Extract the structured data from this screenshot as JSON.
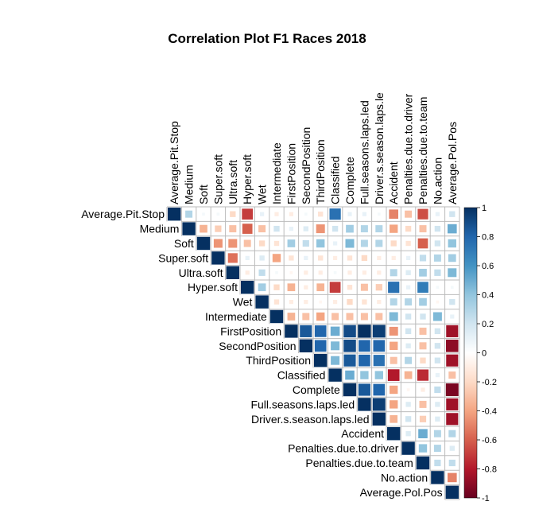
{
  "chart_data": {
    "type": "heatmap",
    "title": "Correlation Plot F1 Races 2018",
    "layout": "upper-triangle, square cells sized by magnitude",
    "variables": [
      "Average.Pit.Stop",
      "Medium",
      "Soft",
      "Super.soft",
      "Ultra.soft",
      "Hyper.soft",
      "Wet",
      "Intermediate",
      "FirstPosition",
      "SecondPosition",
      "ThirdPosition",
      "Classified",
      "Complete",
      "Full.seasons.laps.led",
      "Driver.s.season.laps.led",
      "Accident",
      "Penalties.due.to.driver",
      "Penalties.due.to.team",
      "No.action",
      "Average.Pol.Pos"
    ],
    "column_labels": [
      "Average.Pit.Stop",
      "Medium",
      "Soft",
      "Super.soft",
      "Ultra.soft",
      "Hyper.soft",
      "Wet",
      "Intermediate",
      "FirstPosition",
      "SecondPosition",
      "ThirdPosition",
      "Classified",
      "Complete",
      "Full.seasons.laps.led",
      "Driver.s.season.laps.le",
      "Accident",
      "Penalties.due.to.driver",
      "Penalties.due.to.team",
      "No.action",
      "Average.Pol.Pos"
    ],
    "matrix": [
      [
        1,
        0.3,
        0.05,
        0.05,
        -0.2,
        -0.7,
        0.1,
        -0.1,
        -0.1,
        0.05,
        -0.15,
        0.75,
        0.1,
        0.1,
        0.05,
        -0.5,
        -0.3,
        -0.65,
        0.1,
        0.2
      ],
      [
        0.3,
        1,
        -0.35,
        -0.25,
        -0.3,
        -0.6,
        -0.3,
        0.2,
        0.1,
        0.15,
        -0.45,
        0.2,
        0.35,
        0.3,
        0.3,
        -0.4,
        -0.2,
        -0.3,
        0.2,
        0.5
      ],
      [
        0.05,
        -0.35,
        1,
        -0.45,
        -0.45,
        -0.3,
        -0.2,
        -0.15,
        0.35,
        0.25,
        0.4,
        0.1,
        0.45,
        0.3,
        0.3,
        -0.2,
        -0.15,
        -0.6,
        0.2,
        0.4
      ],
      [
        0.05,
        -0.25,
        -0.45,
        1,
        -0.55,
        0.1,
        0.15,
        -0.4,
        -0.15,
        0.1,
        -0.15,
        -0.1,
        -0.15,
        -0.2,
        -0.1,
        -0.1,
        0.1,
        0.25,
        0.3,
        0.35
      ],
      [
        -0.2,
        -0.3,
        -0.45,
        -0.55,
        1,
        -0.1,
        0.25,
        0.05,
        -0.05,
        -0.1,
        -0.1,
        0.05,
        -0.1,
        -0.1,
        -0.1,
        0.3,
        0.15,
        0.35,
        0.25,
        0.45
      ],
      [
        -0.7,
        -0.6,
        -0.3,
        0.1,
        -0.1,
        1,
        0.35,
        -0.2,
        -0.35,
        -0.1,
        -0.35,
        -0.7,
        -0.15,
        -0.3,
        -0.25,
        0.75,
        0.1,
        0.7,
        0.05,
        0.05
      ],
      [
        0.1,
        -0.3,
        -0.2,
        0.15,
        0.25,
        0.35,
        1,
        -0.15,
        -0.1,
        -0.1,
        -0.05,
        -0.1,
        -0.2,
        -0.15,
        -0.1,
        0.3,
        0.3,
        0.35,
        -0.05,
        0.2
      ],
      [
        -0.1,
        0.2,
        -0.15,
        -0.4,
        0.05,
        -0.2,
        -0.15,
        1,
        -0.35,
        -0.3,
        -0.4,
        -0.3,
        -0.3,
        -0.3,
        -0.3,
        0.45,
        0.2,
        0.2,
        0.45,
        0.1
      ],
      [
        -0.1,
        0.1,
        0.35,
        -0.15,
        -0.05,
        -0.35,
        -0.1,
        -0.35,
        1,
        0.85,
        0.8,
        0.5,
        0.9,
        1,
        0.95,
        -0.45,
        0.2,
        -0.3,
        0.2,
        -0.85
      ],
      [
        0.05,
        0.15,
        0.25,
        0.1,
        -0.1,
        -0.1,
        -0.1,
        -0.3,
        0.85,
        1,
        0.8,
        0.45,
        0.9,
        0.8,
        0.8,
        -0.4,
        0.15,
        -0.3,
        0.2,
        -0.9
      ],
      [
        -0.15,
        -0.45,
        0.4,
        -0.15,
        -0.1,
        -0.35,
        -0.05,
        -0.4,
        0.8,
        0.8,
        1,
        0.45,
        0.85,
        0.8,
        0.75,
        -0.3,
        0.3,
        -0.2,
        0.2,
        -0.85
      ],
      [
        0.75,
        0.2,
        0.1,
        -0.1,
        0.05,
        -0.7,
        -0.1,
        -0.3,
        0.5,
        0.45,
        0.45,
        1,
        0.5,
        0.4,
        0.4,
        -0.8,
        -0.35,
        -0.75,
        0.1,
        -0.3
      ],
      [
        0.1,
        0.35,
        0.45,
        -0.15,
        -0.1,
        -0.15,
        -0.2,
        -0.3,
        0.9,
        0.9,
        0.85,
        0.5,
        1,
        0.85,
        0.8,
        -0.4,
        -0.05,
        -0.1,
        0.25,
        -0.95
      ],
      [
        0.1,
        0.3,
        0.3,
        -0.2,
        -0.1,
        -0.3,
        -0.15,
        -0.3,
        1,
        0.8,
        0.8,
        0.4,
        0.85,
        1,
        0.95,
        -0.4,
        0.15,
        -0.3,
        0.15,
        -0.85
      ],
      [
        0.05,
        0.3,
        0.3,
        -0.1,
        -0.1,
        -0.25,
        -0.1,
        -0.3,
        0.95,
        0.8,
        0.75,
        0.4,
        0.8,
        0.95,
        1,
        -0.35,
        0.2,
        -0.25,
        0.15,
        -0.85
      ],
      [
        -0.5,
        -0.4,
        -0.2,
        -0.1,
        0.3,
        0.75,
        0.3,
        0.45,
        -0.45,
        -0.4,
        -0.3,
        -0.8,
        -0.4,
        -0.4,
        -0.35,
        1,
        0.15,
        0.5,
        0.3,
        0.3
      ],
      [
        -0.3,
        -0.2,
        -0.15,
        0.1,
        0.15,
        0.1,
        0.3,
        0.2,
        0.2,
        0.15,
        0.3,
        -0.35,
        -0.05,
        0.15,
        0.2,
        0.15,
        1,
        0.4,
        0.3,
        0.15
      ],
      [
        -0.65,
        -0.3,
        -0.6,
        0.25,
        0.35,
        0.7,
        0.35,
        0.2,
        -0.3,
        -0.3,
        -0.2,
        -0.75,
        -0.1,
        -0.3,
        -0.25,
        0.5,
        0.4,
        1,
        0.25,
        0.25
      ],
      [
        0.1,
        0.2,
        0.2,
        0.3,
        0.25,
        0.05,
        -0.05,
        0.45,
        0.2,
        0.2,
        0.2,
        0.1,
        0.25,
        0.15,
        0.15,
        0.3,
        0.3,
        0.25,
        1,
        -0.5
      ],
      [
        0.2,
        0.5,
        0.4,
        0.35,
        0.45,
        0.05,
        0.2,
        0.1,
        -0.85,
        -0.9,
        -0.85,
        -0.3,
        -0.95,
        -0.85,
        -0.85,
        0.3,
        0.15,
        0.25,
        -0.5,
        1
      ]
    ],
    "colorbar": {
      "ticks": [
        "1",
        "0.8",
        "0.6",
        "0.4",
        "0.2",
        "0",
        "-0.2",
        "-0.4",
        "-0.6",
        "-0.8",
        "-1"
      ],
      "range": [
        -1,
        1
      ]
    },
    "colors": {
      "negative_end": "#67001f",
      "positive_end": "#053061",
      "grid": "#bbbbbb"
    }
  }
}
